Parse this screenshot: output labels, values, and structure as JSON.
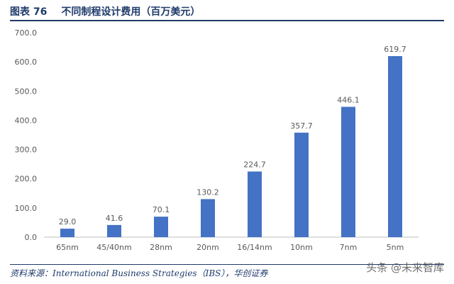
{
  "header": {
    "figure_number": "图表 76",
    "title": "不同制程设计费用（百万美元）"
  },
  "footer": {
    "source": "资料来源：International Business Strategies（IBS），华创证券",
    "watermark": "头条 @未来智库"
  },
  "colors": {
    "bar": "#4472c4",
    "axis": "#bfbfbf",
    "text": "#595959",
    "accent": "#1f3b6b"
  },
  "chart_data": {
    "type": "bar",
    "title": "",
    "xlabel": "",
    "ylabel": "",
    "categories": [
      "65nm",
      "45/40nm",
      "28nm",
      "20nm",
      "16/14nm",
      "10nm",
      "7nm",
      "5nm"
    ],
    "values": [
      29.0,
      41.6,
      70.1,
      130.2,
      224.7,
      357.7,
      446.1,
      619.7
    ],
    "data_labels": [
      "29.0",
      "41.6",
      "70.1",
      "130.2",
      "224.7",
      "357.7",
      "446.1",
      "619.7"
    ],
    "ylim": [
      0,
      700
    ],
    "yticks": [
      "0.0",
      "100.0",
      "200.0",
      "300.0",
      "400.0",
      "500.0",
      "600.0",
      "700.0"
    ],
    "grid": false,
    "legend": "none"
  }
}
